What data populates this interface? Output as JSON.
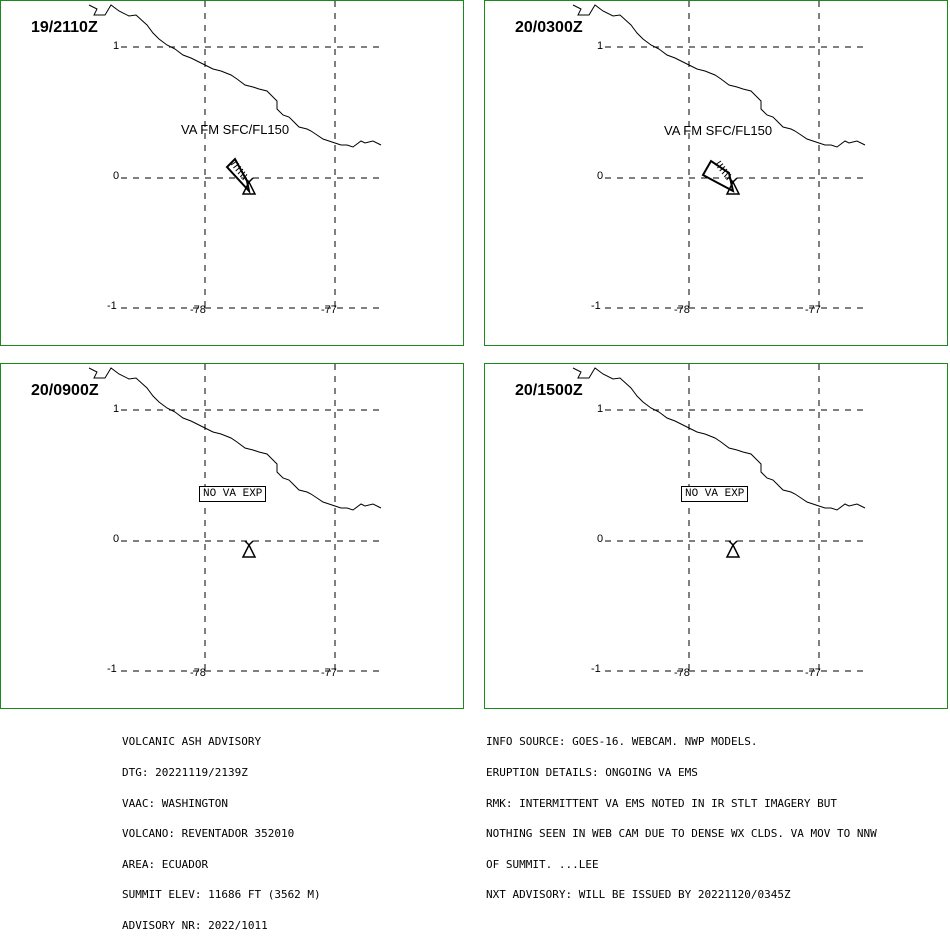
{
  "panels": [
    {
      "time": "19/2110Z",
      "label": "VA FM SFC/FL150",
      "kind": "ash",
      "spread": "narrow"
    },
    {
      "time": "20/0300Z",
      "label": "VA FM SFC/FL150",
      "kind": "ash",
      "spread": "wide"
    },
    {
      "time": "20/0900Z",
      "label": "NO VA EXP",
      "kind": "none"
    },
    {
      "time": "20/1500Z",
      "label": "NO VA EXP",
      "kind": "none"
    }
  ],
  "axes": {
    "y_ticks": [
      "1",
      "0",
      "-1"
    ],
    "x_ticks": [
      "-78",
      "-77"
    ]
  },
  "advisory_left": [
    "VOLCANIC ASH ADVISORY",
    "DTG: 20221119/2139Z",
    "VAAC: WASHINGTON",
    "VOLCANO: REVENTADOR 352010",
    "AREA: ECUADOR",
    "SUMMIT ELEV: 11686 FT (3562 M)",
    "ADVISORY NR: 2022/1011"
  ],
  "advisory_right": [
    "INFO SOURCE: GOES-16. WEBCAM. NWP MODELS.",
    "ERUPTION DETAILS: ONGOING VA EMS",
    "RMK: INTERMITTENT VA EMS NOTED IN IR STLT IMAGERY BUT",
    "NOTHING SEEN IN WEB CAM DUE TO DENSE WX CLDS. VA MOV TO NNW",
    "OF SUMMIT. ...LEE",
    "NXT ADVISORY: WILL BE ISSUED BY 20221120/0345Z"
  ],
  "colors": {
    "border": "#1a8a1a",
    "line": "#000000"
  },
  "icons": {
    "volcano": "volcano-icon",
    "ash": "ash-cloud-polygon",
    "coast": "coastline"
  }
}
